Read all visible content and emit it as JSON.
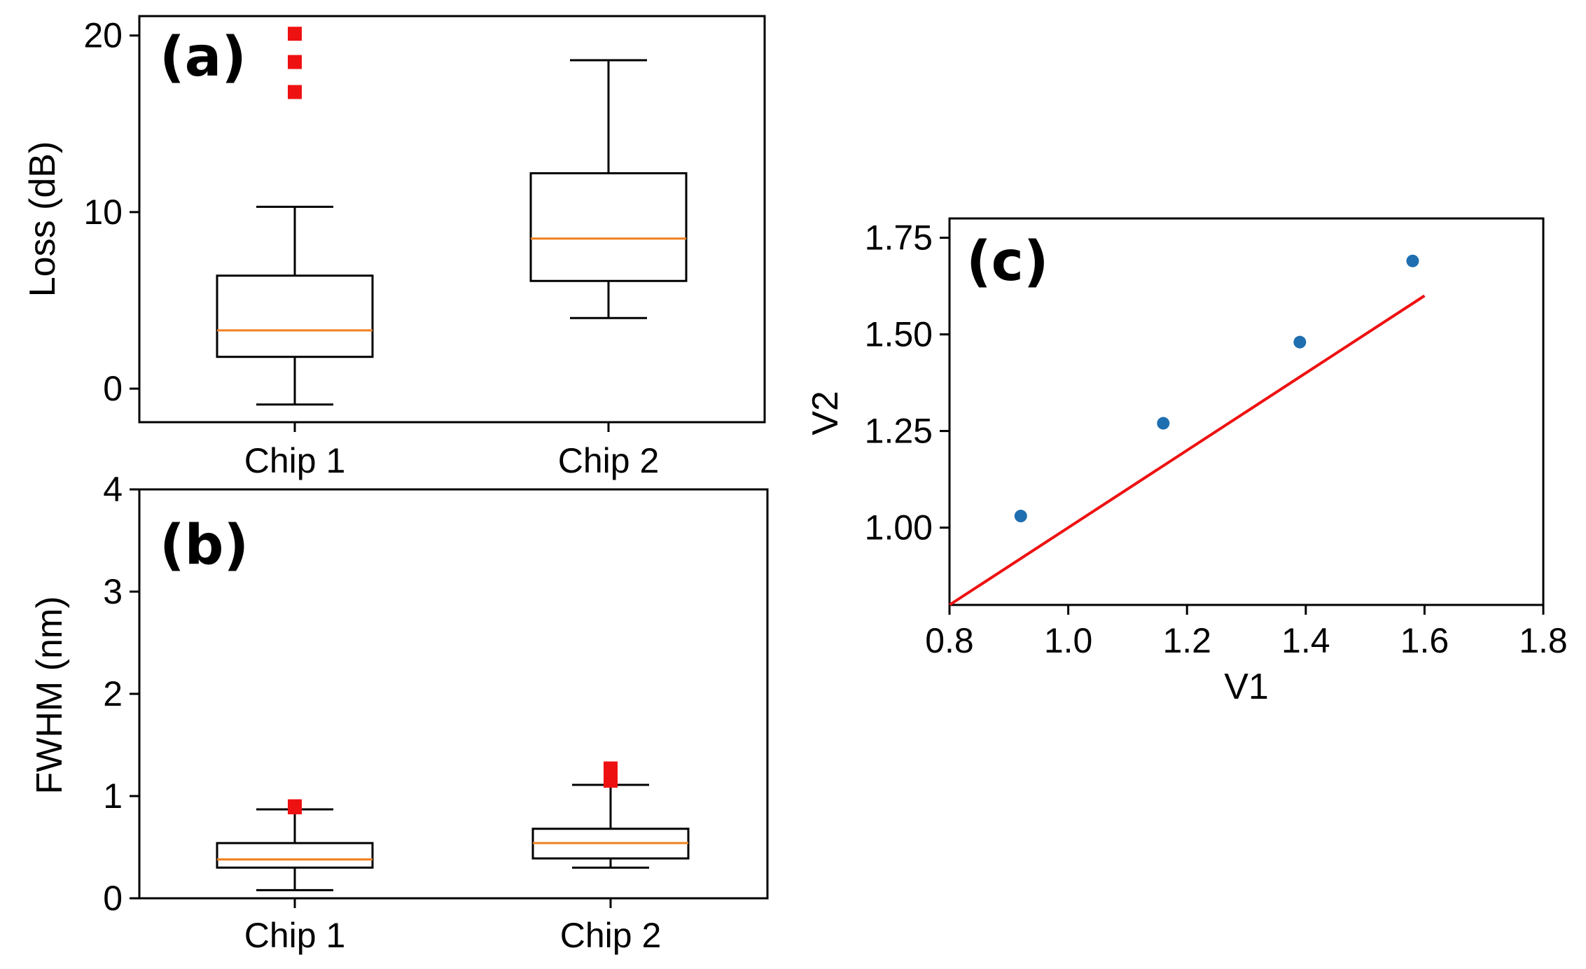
{
  "chart_data": [
    {
      "type": "boxplot",
      "panel_label": "(a)",
      "ylabel": "Loss (dB)",
      "ylim": [
        -1.9,
        21.1
      ],
      "yticks": [
        0,
        10,
        20
      ],
      "categories": [
        "Chip 1",
        "Chip 2"
      ],
      "boxes": [
        {
          "category": "Chip 1",
          "whisker_low": -0.9,
          "q1": 1.8,
          "median": 3.3,
          "q3": 6.4,
          "whisker_high": 10.3,
          "outliers": [
            16.8,
            18.5,
            20.1
          ]
        },
        {
          "category": "Chip 2",
          "whisker_low": 4.0,
          "q1": 6.1,
          "median": 8.5,
          "q3": 12.2,
          "whisker_high": 18.6,
          "outliers": []
        }
      ]
    },
    {
      "type": "boxplot",
      "panel_label": "(b)",
      "ylabel": "FWHM (nm)",
      "ylim": [
        0,
        4
      ],
      "yticks": [
        0,
        1,
        2,
        3,
        4
      ],
      "categories": [
        "Chip 1",
        "Chip 2"
      ],
      "boxes": [
        {
          "category": "Chip 1",
          "whisker_low": 0.08,
          "q1": 0.3,
          "median": 0.38,
          "q3": 0.54,
          "whisker_high": 0.87,
          "outliers": [
            0.89,
            0.9
          ]
        },
        {
          "category": "Chip 2",
          "whisker_low": 0.3,
          "q1": 0.39,
          "median": 0.54,
          "q3": 0.68,
          "whisker_high": 1.11,
          "outliers": [
            1.15,
            1.18,
            1.21,
            1.24,
            1.27
          ]
        }
      ]
    },
    {
      "type": "scatter",
      "panel_label": "(c)",
      "xlabel": "V1",
      "ylabel": "V2",
      "xlim": [
        0.8,
        1.8
      ],
      "ylim": [
        0.8,
        1.8
      ],
      "xticks": [
        "0.8",
        "1.0",
        "1.2",
        "1.4",
        "1.6",
        "1.8"
      ],
      "yticks": [
        "1.00",
        "1.25",
        "1.50",
        "1.75"
      ],
      "points": [
        {
          "x": 0.92,
          "y": 1.03
        },
        {
          "x": 1.16,
          "y": 1.27
        },
        {
          "x": 1.39,
          "y": 1.48
        },
        {
          "x": 1.58,
          "y": 1.69
        }
      ],
      "reference_line": {
        "x": [
          0.8,
          1.6
        ],
        "y": [
          0.8,
          1.6
        ],
        "color": "#ee1111"
      }
    }
  ],
  "colors": {
    "box": "#000000",
    "median": "#f28020",
    "outlier": "#ee1111",
    "scatter": "#1f6fb0",
    "line": "#ee1111"
  }
}
